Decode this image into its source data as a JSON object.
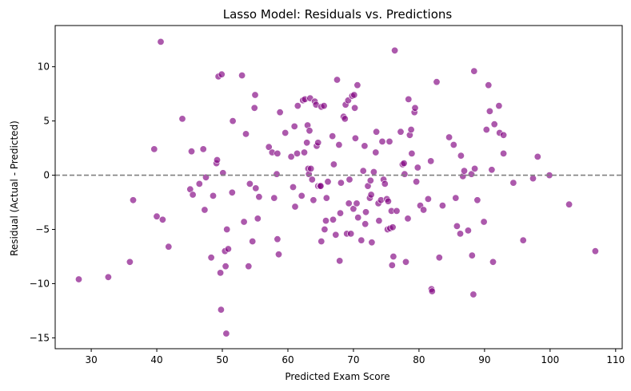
{
  "chart_data": {
    "type": "scatter",
    "title": "Lasso Model: Residuals vs. Predictions",
    "xlabel": "Predicted Exam Score",
    "ylabel": "Residual (Actual - Predicted)",
    "xlim": [
      24.5,
      111
    ],
    "ylim": [
      -16,
      13.8
    ],
    "xticks": [
      30,
      40,
      50,
      60,
      70,
      80,
      90,
      100,
      110
    ],
    "yticks": [
      -15,
      -10,
      -5,
      0,
      5,
      10
    ],
    "reference_line": {
      "y": 0,
      "style": "dashed",
      "color": "#808080"
    },
    "grid": false,
    "point_color": "#800080",
    "point_opacity": 0.65,
    "points": [
      [
        28.1,
        -9.6
      ],
      [
        32.6,
        -9.4
      ],
      [
        35.9,
        -8.0
      ],
      [
        36.4,
        -2.3
      ],
      [
        39.6,
        2.4
      ],
      [
        40.0,
        -3.8
      ],
      [
        40.6,
        12.3
      ],
      [
        40.9,
        -4.1
      ],
      [
        41.8,
        -6.6
      ],
      [
        43.9,
        5.2
      ],
      [
        45.1,
        -1.3
      ],
      [
        45.3,
        2.2
      ],
      [
        45.5,
        -1.8
      ],
      [
        46.5,
        -0.8
      ],
      [
        47.1,
        2.4
      ],
      [
        47.3,
        -3.2
      ],
      [
        47.5,
        -0.2
      ],
      [
        48.3,
        -7.6
      ],
      [
        48.6,
        -1.9
      ],
      [
        49.1,
        1.1
      ],
      [
        49.2,
        1.4
      ],
      [
        49.4,
        9.1
      ],
      [
        49.7,
        -9.0
      ],
      [
        49.8,
        -12.4
      ],
      [
        49.9,
        9.3
      ],
      [
        50.1,
        0.2
      ],
      [
        50.4,
        -7.0
      ],
      [
        50.5,
        -8.4
      ],
      [
        50.6,
        -14.6
      ],
      [
        50.7,
        -5.0
      ],
      [
        50.9,
        -6.8
      ],
      [
        51.5,
        -1.6
      ],
      [
        51.6,
        5.0
      ],
      [
        53.0,
        9.2
      ],
      [
        53.3,
        -4.3
      ],
      [
        53.6,
        3.8
      ],
      [
        54.0,
        -8.4
      ],
      [
        54.2,
        -0.8
      ],
      [
        54.6,
        -6.1
      ],
      [
        54.9,
        6.2
      ],
      [
        55.0,
        7.4
      ],
      [
        55.1,
        -1.2
      ],
      [
        55.4,
        -4.0
      ],
      [
        55.6,
        -2.0
      ],
      [
        57.1,
        2.6
      ],
      [
        57.6,
        2.1
      ],
      [
        57.9,
        -2.1
      ],
      [
        58.3,
        0.1
      ],
      [
        58.4,
        -5.9
      ],
      [
        58.6,
        -7.3
      ],
      [
        58.4,
        2.0
      ],
      [
        58.8,
        5.8
      ],
      [
        59.6,
        3.9
      ],
      [
        60.5,
        1.7
      ],
      [
        60.8,
        -1.1
      ],
      [
        61.0,
        4.5
      ],
      [
        61.1,
        -2.9
      ],
      [
        61.4,
        2.0
      ],
      [
        61.5,
        6.4
      ],
      [
        62.1,
        -1.9
      ],
      [
        62.3,
        6.9
      ],
      [
        62.5,
        2.1
      ],
      [
        62.6,
        7.0
      ],
      [
        62.9,
        3.0
      ],
      [
        63.0,
        4.6
      ],
      [
        63.1,
        0.6
      ],
      [
        63.2,
        0.1
      ],
      [
        63.3,
        4.1
      ],
      [
        63.4,
        7.1
      ],
      [
        63.5,
        0.6
      ],
      [
        63.7,
        -0.4
      ],
      [
        63.9,
        -2.3
      ],
      [
        64.1,
        6.8
      ],
      [
        64.3,
        6.5
      ],
      [
        64.4,
        2.7
      ],
      [
        64.6,
        3.0
      ],
      [
        64.6,
        -1.0
      ],
      [
        64.9,
        -1.0
      ],
      [
        65.0,
        -1.0
      ],
      [
        65.1,
        6.3
      ],
      [
        65.1,
        -6.1
      ],
      [
        65.5,
        6.4
      ],
      [
        65.6,
        -5.0
      ],
      [
        65.8,
        -4.2
      ],
      [
        65.9,
        -2.1
      ],
      [
        66.1,
        -0.6
      ],
      [
        66.8,
        3.6
      ],
      [
        66.9,
        -4.1
      ],
      [
        67.0,
        1.0
      ],
      [
        67.3,
        -5.5
      ],
      [
        67.5,
        8.8
      ],
      [
        67.8,
        2.8
      ],
      [
        67.9,
        -7.9
      ],
      [
        68.0,
        -3.5
      ],
      [
        68.1,
        -0.7
      ],
      [
        68.5,
        5.4
      ],
      [
        68.7,
        5.2
      ],
      [
        68.8,
        6.5
      ],
      [
        69.0,
        -5.4
      ],
      [
        69.2,
        6.9
      ],
      [
        69.3,
        -2.6
      ],
      [
        69.4,
        -0.4
      ],
      [
        69.6,
        -5.4
      ],
      [
        69.8,
        7.3
      ],
      [
        70.0,
        -3.1
      ],
      [
        70.1,
        7.4
      ],
      [
        70.2,
        6.2
      ],
      [
        70.3,
        3.4
      ],
      [
        70.5,
        -2.6
      ],
      [
        70.6,
        8.3
      ],
      [
        70.7,
        -3.9
      ],
      [
        71.2,
        -6.0
      ],
      [
        71.5,
        0.4
      ],
      [
        71.7,
        2.7
      ],
      [
        71.8,
        -4.5
      ],
      [
        71.9,
        -3.4
      ],
      [
        72.2,
        -1.0
      ],
      [
        72.5,
        -2.1
      ],
      [
        72.6,
        -0.5
      ],
      [
        72.7,
        -1.8
      ],
      [
        72.8,
        -6.2
      ],
      [
        73.1,
        0.3
      ],
      [
        73.4,
        2.1
      ],
      [
        73.5,
        4.0
      ],
      [
        73.8,
        -2.6
      ],
      [
        73.9,
        -4.2
      ],
      [
        74.2,
        -2.3
      ],
      [
        74.4,
        3.1
      ],
      [
        74.6,
        -0.4
      ],
      [
        74.8,
        -0.8
      ],
      [
        75.1,
        -2.2
      ],
      [
        75.2,
        -5.0
      ],
      [
        75.3,
        -2.4
      ],
      [
        75.5,
        3.1
      ],
      [
        75.6,
        -4.9
      ],
      [
        75.8,
        -3.3
      ],
      [
        75.9,
        -8.3
      ],
      [
        76.0,
        -4.8
      ],
      [
        76.1,
        -7.5
      ],
      [
        76.3,
        11.5
      ],
      [
        76.6,
        -3.3
      ],
      [
        77.2,
        4.0
      ],
      [
        77.5,
        1.0
      ],
      [
        77.7,
        1.1
      ],
      [
        77.8,
        0.1
      ],
      [
        78.0,
        -8.0
      ],
      [
        78.3,
        -4.0
      ],
      [
        78.4,
        7.0
      ],
      [
        78.6,
        3.7
      ],
      [
        78.8,
        4.2
      ],
      [
        78.9,
        2.0
      ],
      [
        79.3,
        5.8
      ],
      [
        79.4,
        6.2
      ],
      [
        79.6,
        -0.6
      ],
      [
        79.8,
        0.7
      ],
      [
        80.2,
        -2.8
      ],
      [
        80.7,
        -3.2
      ],
      [
        81.4,
        -2.2
      ],
      [
        81.8,
        1.3
      ],
      [
        81.9,
        -10.5
      ],
      [
        82.0,
        -10.7
      ],
      [
        82.7,
        8.6
      ],
      [
        83.1,
        -7.6
      ],
      [
        83.6,
        -2.8
      ],
      [
        84.6,
        3.5
      ],
      [
        85.3,
        2.8
      ],
      [
        85.6,
        -2.1
      ],
      [
        85.8,
        -4.7
      ],
      [
        86.3,
        -5.4
      ],
      [
        86.4,
        1.8
      ],
      [
        86.7,
        -0.1
      ],
      [
        86.9,
        0.4
      ],
      [
        87.5,
        -5.1
      ],
      [
        88.0,
        0.1
      ],
      [
        88.1,
        -7.4
      ],
      [
        88.3,
        -11.0
      ],
      [
        88.4,
        9.6
      ],
      [
        88.5,
        0.6
      ],
      [
        88.9,
        -2.3
      ],
      [
        89.9,
        -4.3
      ],
      [
        90.3,
        4.2
      ],
      [
        90.6,
        8.3
      ],
      [
        90.8,
        5.9
      ],
      [
        91.1,
        0.5
      ],
      [
        91.3,
        -8.0
      ],
      [
        91.5,
        4.7
      ],
      [
        92.2,
        6.4
      ],
      [
        92.3,
        3.9
      ],
      [
        92.9,
        3.7
      ],
      [
        92.9,
        2.0
      ],
      [
        94.4,
        -0.7
      ],
      [
        95.9,
        -6.0
      ],
      [
        97.4,
        -0.3
      ],
      [
        98.1,
        1.7
      ],
      [
        99.9,
        0.0
      ],
      [
        102.9,
        -2.7
      ],
      [
        106.9,
        -7.0
      ]
    ]
  }
}
